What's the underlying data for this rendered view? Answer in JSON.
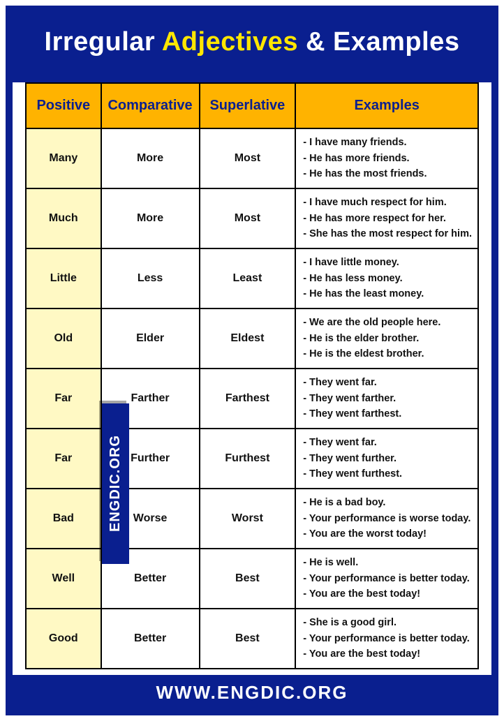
{
  "title": {
    "part1": "Irregular",
    "accent": "Adjectives",
    "part2": "& Examples"
  },
  "colors": {
    "frame": "#0a1f8f",
    "header_bg": "#ffb300",
    "header_text": "#0a1f8f",
    "positive_bg": "#fff9c4",
    "accent_text": "#ffe600",
    "title_bg": "#0a1f8f",
    "title_text": "#ffffff",
    "border": "#000000"
  },
  "columns": [
    "Positive",
    "Comparative",
    "Superlative",
    "Examples"
  ],
  "rows": [
    {
      "positive": "Many",
      "comparative": "More",
      "superlative": "Most",
      "examples": [
        "- I have many friends.",
        "- He has more friends.",
        "- He has the most friends."
      ]
    },
    {
      "positive": "Much",
      "comparative": "More",
      "superlative": "Most",
      "examples": [
        "- I have much respect for him.",
        "- He has more respect for her.",
        "- She has the most respect for him."
      ]
    },
    {
      "positive": "Little",
      "comparative": "Less",
      "superlative": "Least",
      "examples": [
        "- I have little money.",
        "- He has less money.",
        "- He has the least money."
      ]
    },
    {
      "positive": "Old",
      "comparative": "Elder",
      "superlative": "Eldest",
      "examples": [
        "- We are the old people here.",
        "- He is the elder brother.",
        "- He is the eldest brother."
      ]
    },
    {
      "positive": "Far",
      "comparative": "Farther",
      "superlative": "Farthest",
      "examples": [
        "- They went far.",
        "- They went farther.",
        "- They went farthest."
      ]
    },
    {
      "positive": "Far",
      "comparative": "Further",
      "superlative": "Furthest",
      "examples": [
        "- They went far.",
        "- They went further.",
        "- They went furthest."
      ]
    },
    {
      "positive": "Bad",
      "comparative": "Worse",
      "superlative": "Worst",
      "examples": [
        "- He is a bad boy.",
        "- Your performance is worse today.",
        "- You are the worst today!"
      ]
    },
    {
      "positive": "Well",
      "comparative": "Better",
      "superlative": "Best",
      "examples": [
        "- He is well.",
        "- Your performance is better today.",
        "- You are the best today!"
      ]
    },
    {
      "positive": "Good",
      "comparative": "Better",
      "superlative": "Best",
      "examples": [
        "- She is a good girl.",
        "- Your performance is better today.",
        "- You are the best today!"
      ]
    }
  ],
  "watermark": "ENGDIC.ORG",
  "footer": "WWW.ENGDIC.ORG"
}
